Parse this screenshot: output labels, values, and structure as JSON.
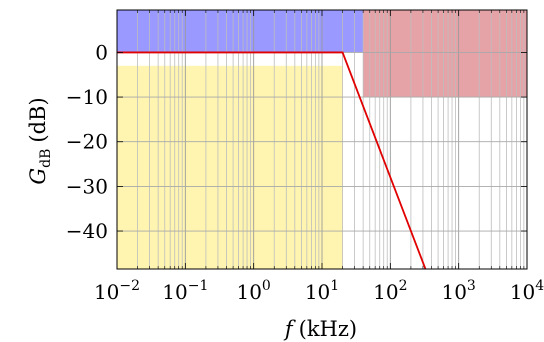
{
  "chart_data": {
    "type": "line",
    "title": "",
    "xlabel": {
      "var": "f",
      "unit": "(kHz)"
    },
    "ylabel": {
      "var": "G",
      "sub": "dB",
      "unit": "(dB)"
    },
    "xscale": "log",
    "xlim": [
      0.01,
      10000
    ],
    "ylim": [
      -48.5,
      9.5
    ],
    "grid": true,
    "x_ticks": [
      {
        "base": "10",
        "exp": "−2"
      },
      {
        "base": "10",
        "exp": "−1"
      },
      {
        "base": "10",
        "exp": "0"
      },
      {
        "base": "10",
        "exp": "1"
      },
      {
        "base": "10",
        "exp": "2"
      },
      {
        "base": "10",
        "exp": "3"
      },
      {
        "base": "10",
        "exp": "4"
      }
    ],
    "x_tick_values": [
      0.01,
      0.1,
      1,
      10,
      100,
      1000,
      10000
    ],
    "y_ticks": [
      "0",
      "−10",
      "−20",
      "−30",
      "−40"
    ],
    "y_tick_values": [
      0,
      -10,
      -20,
      -30,
      -40
    ],
    "regions": [
      {
        "x": [
          0.01,
          40
        ],
        "y": [
          0,
          9.5
        ],
        "color": "#9999ff"
      },
      {
        "x": [
          40,
          10000
        ],
        "y": [
          -10,
          9.5
        ],
        "color": "#e5a3a8"
      },
      {
        "x": [
          0.01,
          20
        ],
        "y": [
          -48.5,
          -3
        ],
        "color": "#fff5b0"
      }
    ],
    "series": [
      {
        "color": "#e00000",
        "x": [
          0.01,
          20,
          350
        ],
        "y": [
          0,
          0,
          -49.7
        ]
      }
    ]
  }
}
